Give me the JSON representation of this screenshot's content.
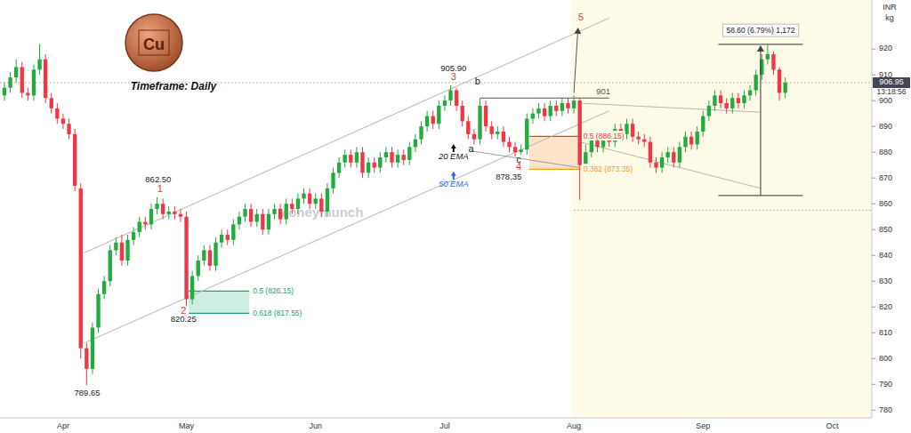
{
  "chart_data": {
    "type": "candlestick",
    "title": "Timeframe: Daily",
    "watermark": "Moneymunch",
    "icon_text": "Cu",
    "y_label": "INR",
    "y_sublabel": "kg",
    "last_price": 906.95,
    "countdown": "13:18:56",
    "grid": false,
    "xlim": [
      -0.75,
      147.75
    ],
    "ylim": [
      777,
      939
    ],
    "yticks": [
      780,
      790,
      800,
      810,
      820,
      830,
      840,
      850,
      860,
      870,
      880,
      890,
      900,
      910,
      920
    ],
    "categories": [
      null,
      null,
      null,
      null,
      null,
      null,
      null,
      null,
      null,
      null,
      "Apr",
      null,
      null,
      null,
      null,
      null,
      null,
      null,
      null,
      null,
      null,
      null,
      null,
      null,
      null,
      null,
      null,
      null,
      null,
      null,
      null,
      "May",
      null,
      null,
      null,
      null,
      null,
      null,
      null,
      null,
      null,
      null,
      null,
      null,
      null,
      null,
      null,
      null,
      null,
      null,
      null,
      null,
      null,
      "Jun",
      null,
      null,
      null,
      null,
      null,
      null,
      null,
      null,
      null,
      null,
      null,
      null,
      null,
      null,
      null,
      null,
      null,
      null,
      null,
      null,
      null,
      "Jul",
      null,
      null,
      null,
      null,
      null,
      null,
      null,
      null,
      null,
      null,
      null,
      null,
      null,
      null,
      null,
      null,
      null,
      null,
      null,
      null,
      null,
      "Aug",
      null,
      null,
      null,
      null,
      null,
      null,
      null,
      null,
      null,
      null,
      null,
      null,
      null,
      null,
      null,
      null,
      null,
      null,
      null,
      null,
      null,
      "Sep",
      null,
      null,
      null,
      null,
      null,
      null,
      null,
      null,
      null,
      null,
      null,
      null,
      null,
      null,
      null,
      null,
      null,
      null,
      null,
      null,
      null,
      "Oct",
      null,
      null,
      null,
      null,
      null,
      null
    ],
    "open": [
      902,
      905,
      909,
      913,
      903,
      902,
      912,
      916,
      901,
      897,
      893,
      891,
      887,
      866,
      804,
      796,
      812,
      825,
      830,
      842,
      845,
      838,
      846,
      849,
      853,
      852,
      858,
      860,
      856,
      857,
      856,
      855,
      823,
      832,
      838,
      842,
      836,
      845,
      848,
      846,
      852,
      855,
      858,
      853,
      856,
      850,
      856,
      858,
      854,
      860,
      858,
      862,
      864,
      860,
      862,
      857,
      866,
      872,
      876,
      879,
      876,
      880,
      872,
      876,
      874,
      878,
      880,
      876,
      879,
      877,
      882,
      885,
      890,
      894,
      891,
      898,
      900,
      904,
      898,
      892,
      887,
      885,
      898,
      890,
      887,
      888,
      884,
      882,
      880,
      881,
      893,
      895,
      897,
      894,
      898,
      896,
      899,
      897,
      900,
      875,
      880,
      885,
      882,
      886,
      884,
      889,
      887,
      891,
      886,
      885,
      884,
      876,
      874,
      878,
      880,
      876,
      882,
      886,
      883,
      888,
      894,
      898,
      902,
      899,
      897,
      901,
      899,
      902,
      904,
      910,
      916,
      918,
      912,
      903,
      null,
      null,
      null,
      null,
      null,
      null,
      null,
      null,
      null,
      null,
      null,
      null,
      null,
      null
    ],
    "high": [
      907,
      911,
      916,
      915,
      905,
      914,
      922,
      918,
      903,
      899,
      895,
      893,
      889,
      868,
      806,
      814,
      827,
      832,
      844,
      847,
      848,
      848,
      851,
      855,
      855,
      860,
      862.5,
      862,
      859,
      859,
      858,
      857,
      834,
      840,
      844,
      844,
      847,
      850,
      850,
      854,
      857,
      860,
      860,
      858,
      858,
      858,
      860,
      860,
      862,
      862,
      864,
      866,
      866,
      864,
      864,
      868,
      874,
      878,
      881,
      881,
      882,
      882,
      878,
      878,
      880,
      882,
      882,
      881,
      881,
      884,
      887,
      892,
      896,
      896,
      900,
      902,
      905.9,
      905,
      900,
      894,
      889,
      901,
      900,
      892,
      890,
      890,
      886,
      884,
      883,
      895,
      897,
      899,
      899,
      900,
      900,
      901,
      901,
      902,
      901,
      883,
      888,
      887,
      888,
      888,
      891,
      891,
      893,
      893,
      888,
      887,
      886,
      878,
      880,
      882,
      882,
      884,
      888,
      888,
      890,
      896,
      900,
      904,
      904,
      901,
      903,
      903,
      904,
      906,
      912,
      918,
      921.5,
      919,
      913,
      909,
      null,
      null,
      null,
      null,
      null,
      null,
      null,
      null,
      null,
      null,
      null,
      null,
      null,
      null
    ],
    "low": [
      900,
      903,
      907,
      901,
      900,
      900,
      910,
      899,
      895,
      891,
      889,
      885,
      865,
      800,
      789.65,
      794,
      810,
      823,
      828,
      840,
      836,
      836,
      844,
      847,
      850,
      850,
      856,
      854,
      854,
      854,
      853,
      820.25,
      821,
      830,
      836,
      834,
      834,
      843,
      844,
      844,
      850,
      853,
      851,
      851,
      848,
      848,
      854,
      852,
      852,
      856,
      856,
      860,
      858,
      858,
      855,
      855,
      864,
      870,
      874,
      874,
      874,
      870,
      870,
      872,
      872,
      876,
      874,
      874,
      875,
      875,
      880,
      883,
      888,
      889,
      889,
      896,
      898,
      896,
      890,
      885,
      883,
      883,
      888,
      885,
      885,
      882,
      880,
      878.35,
      879,
      879,
      891,
      893,
      892,
      892,
      894,
      894,
      895,
      895,
      861.5,
      873,
      878,
      880,
      880,
      882,
      882,
      885,
      885,
      884,
      883,
      882,
      874,
      872,
      872,
      876,
      874,
      874,
      880,
      881,
      881,
      886,
      892,
      896,
      897,
      895,
      895,
      897,
      897,
      900,
      902,
      908,
      914,
      910,
      900,
      901,
      null,
      null,
      null,
      null,
      null,
      null,
      null,
      null,
      null,
      null,
      null,
      null,
      null,
      null
    ],
    "close": [
      905,
      909,
      913,
      903,
      902,
      912,
      916,
      901,
      897,
      893,
      891,
      887,
      867,
      804,
      796,
      812,
      825,
      830,
      842,
      845,
      838,
      846,
      849,
      853,
      852,
      858,
      860,
      856,
      857,
      856,
      855,
      823,
      832,
      838,
      842,
      836,
      845,
      848,
      846,
      852,
      855,
      858,
      853,
      856,
      850,
      856,
      858,
      854,
      860,
      858,
      862,
      864,
      860,
      862,
      857,
      866,
      872,
      876,
      879,
      876,
      880,
      872,
      876,
      874,
      878,
      880,
      876,
      879,
      877,
      882,
      885,
      890,
      894,
      891,
      898,
      900,
      904,
      898,
      892,
      887,
      885,
      898,
      890,
      887,
      888,
      884,
      882,
      880,
      881,
      893,
      895,
      897,
      894,
      898,
      896,
      899,
      897,
      900,
      875,
      880,
      885,
      882,
      886,
      884,
      889,
      887,
      891,
      886,
      885,
      884,
      876,
      874,
      878,
      880,
      876,
      882,
      886,
      883,
      888,
      894,
      898,
      902,
      899,
      897,
      901,
      899,
      902,
      904,
      910,
      916,
      918,
      912,
      903,
      907,
      null,
      null,
      null,
      null,
      null,
      null,
      null,
      null,
      null,
      null,
      null,
      null,
      null,
      null
    ],
    "regions": [
      {
        "x": [
          96.5,
          147.75
        ],
        "color": "#fdfbe8"
      }
    ],
    "zones": [
      {
        "x": [
          31.4,
          41.7
        ],
        "y": [
          826.15,
          817.55
        ],
        "color": "#cdeee0",
        "labels": [
          "0.5 (826.15)",
          "0.618 (817.55)"
        ],
        "colors": [
          "#26a269",
          "#26a269"
        ]
      },
      {
        "x": [
          89.4,
          98
        ],
        "y": [
          886.15,
          873.35
        ],
        "color": "#fde3c8",
        "labels": [
          "0.5 (886.15)",
          "0.382 (873.35)"
        ],
        "colors": [
          "#e53935",
          "#f59c1a"
        ]
      }
    ],
    "lines": [
      {
        "x": [
          13.6,
          103
        ],
        "y": [
          841,
          932
        ],
        "color": "#b5b5b5",
        "line_style": "solid"
      },
      {
        "x": [
          13.6,
          103
        ],
        "y": [
          806,
          896
        ],
        "color": "#b5b5b5",
        "line_style": "solid"
      },
      {
        "x": [
          79.5,
          98
        ],
        "y": [
          880.5,
          874
        ],
        "color": "#9e9e9e",
        "line_style": "solid"
      },
      {
        "x": [
          81,
          103
        ],
        "y": [
          901,
          901
        ],
        "color": "#555555",
        "line_style": "solid"
      },
      {
        "x": [
          97,
          97.7
        ],
        "y": [
          903,
          928
        ],
        "color": "#555555",
        "line_style": "solid",
        "marker": "arrow"
      },
      {
        "x": [
          98,
          128.8
        ],
        "y": [
          899,
          895.5
        ],
        "color": "#b5b5b5",
        "line_style": "solid"
      },
      {
        "x": [
          98,
          128.8
        ],
        "y": [
          884,
          866
        ],
        "color": "#b5b5b5",
        "line_style": "solid"
      },
      {
        "x": [
          97,
          147.75
        ],
        "y": [
          857.5,
          857.5
        ],
        "color": "#9e9e9e",
        "line_style": "dotted"
      }
    ],
    "measure": {
      "label": "58.60 (6.79%) 1,172",
      "x": 128.8,
      "from": 863.2,
      "to": 921.8,
      "x_range": [
        121.6,
        136
      ]
    },
    "annotations": [
      {
        "text": "905.90",
        "x": 76.5,
        "y": 912.4,
        "color": "#222222"
      },
      {
        "text": "3",
        "x": 76.5,
        "y": 909,
        "color": "#e53935"
      },
      {
        "text": "5",
        "x": 98.2,
        "y": 932,
        "color": "#e53935"
      },
      {
        "text": "862.50",
        "x": 26.2,
        "y": 869.1,
        "color": "#222222"
      },
      {
        "text": "1",
        "x": 26.5,
        "y": 865.6,
        "color": "#e53935"
      },
      {
        "text": "2",
        "x": 30.5,
        "y": 818.5,
        "color": "#e53935"
      },
      {
        "text": "820.25",
        "x": 30.5,
        "y": 815.1,
        "color": "#222222"
      },
      {
        "text": "789.65",
        "x": 14.1,
        "y": 786.5,
        "color": "#222222"
      },
      {
        "text": "c",
        "x": 87.6,
        "y": 876.8,
        "color": "#222222"
      },
      {
        "text": "4",
        "x": 87.6,
        "y": 874,
        "color": "#e53935"
      },
      {
        "text": "878.35",
        "x": 85.9,
        "y": 870.4,
        "color": "#222222"
      },
      {
        "text": "a",
        "x": 79.5,
        "y": 881.1,
        "color": "#222222"
      },
      {
        "text": "b",
        "x": 80.6,
        "y": 907.3,
        "color": "#222222"
      },
      {
        "text": "20 EMA",
        "x": 76.5,
        "y": 878,
        "color": "#111111",
        "marker": "arrow-up"
      },
      {
        "text": "50 EMA",
        "x": 76.5,
        "y": 867.4,
        "color": "#2962ff",
        "marker": "arrow-up"
      },
      {
        "text": "901",
        "x": 102,
        "y": 903.4,
        "color": "#555555"
      }
    ]
  }
}
